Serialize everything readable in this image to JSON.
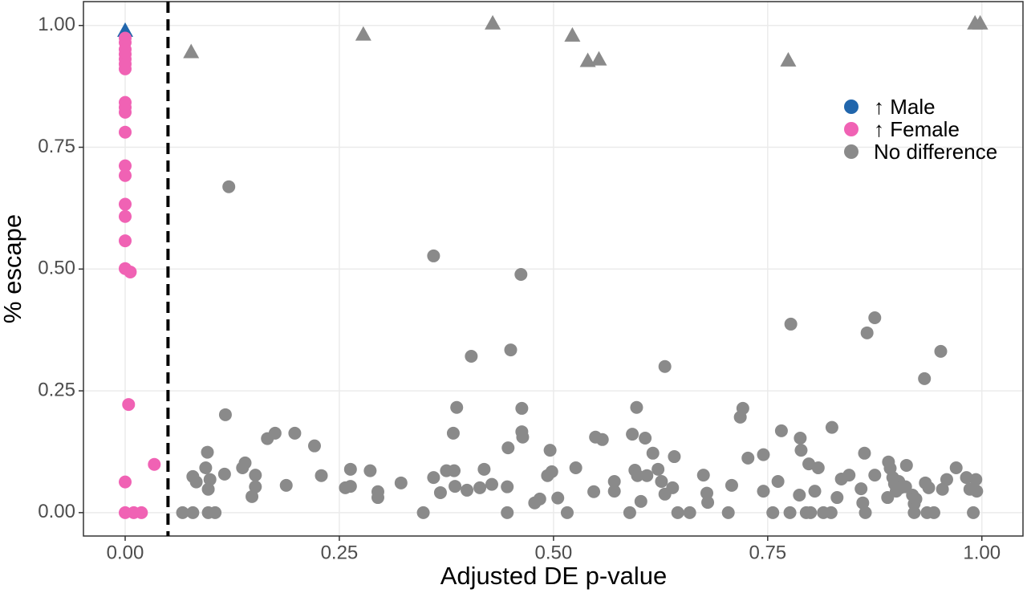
{
  "chart_data": {
    "type": "scatter",
    "xlabel": "Adjusted DE p-value",
    "ylabel": "% escape",
    "xlim": [
      -0.0487,
      1.048
    ],
    "ylim": [
      -0.048,
      1.049
    ],
    "xticks": [
      {
        "value": 0,
        "label": "0.00"
      },
      {
        "value": 0.25,
        "label": "0.25"
      },
      {
        "value": 0.5,
        "label": "0.50"
      },
      {
        "value": 0.75,
        "label": "0.75"
      },
      {
        "value": 1,
        "label": "1.00"
      }
    ],
    "yticks": [
      {
        "value": 0,
        "label": "0.00"
      },
      {
        "value": 0.25,
        "label": "0.25"
      },
      {
        "value": 0.5,
        "label": "0.50"
      },
      {
        "value": 0.75,
        "label": "0.75"
      },
      {
        "value": 1,
        "label": "1.00"
      }
    ],
    "grid": true,
    "legend": "right",
    "vline": 0.05,
    "series": [
      {
        "name": "↑ Male",
        "color": "#2166ac",
        "x": [
          0
        ],
        "values": [
          0.99
        ],
        "markers": [
          "triangle"
        ]
      },
      {
        "name": "↑ Female",
        "color": "#f062b4",
        "x": [
          0,
          0,
          0,
          0,
          0,
          0,
          0,
          0,
          0,
          0,
          0,
          0,
          0,
          0,
          0,
          0,
          0,
          0.006,
          0.004,
          0.034,
          0,
          0,
          0.01,
          0.019
        ],
        "values": [
          0.974,
          0.965,
          0.951,
          0.941,
          0.931,
          0.921,
          0.911,
          0.842,
          0.832,
          0.822,
          0.781,
          0.712,
          0.692,
          0.633,
          0.608,
          0.558,
          0.501,
          0.494,
          0.222,
          0.099,
          0.063,
          0,
          0,
          0
        ],
        "markers": [
          "circle",
          "circle",
          "circle",
          "circle",
          "circle",
          "circle",
          "circle",
          "circle",
          "circle",
          "circle",
          "circle",
          "circle",
          "circle",
          "circle",
          "circle",
          "circle",
          "circle",
          "circle",
          "circle",
          "circle",
          "circle",
          "circle",
          "circle",
          "circle"
        ]
      },
      {
        "name": "No difference",
        "color": "#8a8a8a",
        "x": [
          0.077,
          0.278,
          0.429,
          0.522,
          0.54,
          0.553,
          0.774,
          0.992,
          0.998,
          0.121,
          0.36,
          0.462,
          0.404,
          0.45,
          0.63,
          0.777,
          0.875,
          0.866,
          0.952,
          0.933,
          0.117,
          0.387,
          0.463,
          0.597,
          0.721,
          0.718,
          0.825,
          0.383,
          0.463,
          0.464,
          0.175,
          0.166,
          0.198,
          0.221,
          0.549,
          0.557,
          0.592,
          0.607,
          0.766,
          0.788,
          0.789,
          0.727,
          0.745,
          0.863,
          0.616,
          0.641,
          0.496,
          0.447,
          0.096,
          0.137,
          0.14,
          0.094,
          0.079,
          0.083,
          0.099,
          0.097,
          0.116,
          0.152,
          0.152,
          0.148,
          0.188,
          0.229,
          0.263,
          0.257,
          0.263,
          0.286,
          0.295,
          0.295,
          0.322,
          0.348,
          0.36,
          0.368,
          0.375,
          0.384,
          0.385,
          0.399,
          0.414,
          0.419,
          0.428,
          0.446,
          0.446,
          0.478,
          0.484,
          0.493,
          0.498,
          0.505,
          0.516,
          0.526,
          0.547,
          0.571,
          0.571,
          0.589,
          0.595,
          0.598,
          0.602,
          0.609,
          0.622,
          0.626,
          0.63,
          0.639,
          0.645,
          0.659,
          0.675,
          0.679,
          0.68,
          0.704,
          0.708,
          0.745,
          0.756,
          0.762,
          0.776,
          0.787,
          0.795,
          0.798,
          0.8,
          0.805,
          0.809,
          0.815,
          0.824,
          0.831,
          0.836,
          0.845,
          0.859,
          0.861,
          0.864,
          0.875,
          0.891,
          0.893,
          0.896,
          0.898,
          0.9,
          0.89,
          0.903,
          0.905,
          0.912,
          0.911,
          0.919,
          0.921,
          0.921,
          0.923,
          0.934,
          0.936,
          0.938,
          0.944,
          0.954,
          0.959,
          0.97,
          0.982,
          0.986,
          0.99,
          0.993,
          0.994,
          0.067,
          0.079,
          0.097,
          0.105
        ],
        "values": [
          0.946,
          0.982,
          1.005,
          0.98,
          0.928,
          0.931,
          0.929,
          1.005,
          1.005,
          0.669,
          0.527,
          0.489,
          0.321,
          0.334,
          0.3,
          0.387,
          0.4,
          0.369,
          0.331,
          0.275,
          0.201,
          0.216,
          0.214,
          0.216,
          0.214,
          0.196,
          0.175,
          0.163,
          0.166,
          0.155,
          0.163,
          0.152,
          0.163,
          0.137,
          0.155,
          0.15,
          0.161,
          0.153,
          0.168,
          0.153,
          0.128,
          0.112,
          0.119,
          0.122,
          0.122,
          0.115,
          0.128,
          0.133,
          0.124,
          0.092,
          0.102,
          0.092,
          0.074,
          0.063,
          0.068,
          0.048,
          0.079,
          0.077,
          0.053,
          0.033,
          0.056,
          0.076,
          0.089,
          0.051,
          0.054,
          0.086,
          0.043,
          0.031,
          0.061,
          0,
          0.072,
          0.041,
          0.086,
          0.086,
          0.054,
          0.046,
          0.051,
          0.089,
          0.058,
          0.053,
          0,
          0.02,
          0.028,
          0.076,
          0.084,
          0.03,
          0,
          0.092,
          0.043,
          0.064,
          0.044,
          0,
          0.087,
          0.076,
          0.023,
          0.076,
          0.089,
          0.064,
          0.038,
          0.051,
          0,
          0,
          0.077,
          0.04,
          0.021,
          0,
          0.056,
          0.044,
          0,
          0.064,
          0,
          0.036,
          0,
          0.1,
          0,
          0.044,
          0.092,
          0,
          0,
          0.031,
          0.069,
          0.077,
          0.049,
          0.02,
          0,
          0.077,
          0.104,
          0.091,
          0.072,
          0.059,
          0.044,
          0.031,
          0.064,
          0.051,
          0.097,
          0.053,
          0.036,
          0.018,
          0,
          0.028,
          0.061,
          0,
          0.051,
          0,
          0.048,
          0.068,
          0.092,
          0.072,
          0.048,
          0,
          0.068,
          0.044,
          0,
          0,
          0,
          0
        ],
        "markers": [
          "triangle",
          "triangle",
          "triangle",
          "triangle",
          "triangle",
          "triangle",
          "triangle",
          "triangle",
          "triangle",
          "circle",
          "circle",
          "circle",
          "circle",
          "circle",
          "circle",
          "circle",
          "circle",
          "circle",
          "circle",
          "circle",
          "circle",
          "circle",
          "circle",
          "circle",
          "circle",
          "circle",
          "circle",
          "circle",
          "circle",
          "circle",
          "circle",
          "circle",
          "circle",
          "circle",
          "circle",
          "circle",
          "circle",
          "circle",
          "circle",
          "circle",
          "circle",
          "circle",
          "circle",
          "circle",
          "circle",
          "circle",
          "circle",
          "circle",
          "circle",
          "circle",
          "circle",
          "circle",
          "circle",
          "circle",
          "circle",
          "circle",
          "circle",
          "circle",
          "circle",
          "circle",
          "circle",
          "circle",
          "circle",
          "circle",
          "circle",
          "circle",
          "circle",
          "circle",
          "circle",
          "circle",
          "circle",
          "circle",
          "circle",
          "circle",
          "circle",
          "circle",
          "circle",
          "circle",
          "circle",
          "circle",
          "circle",
          "circle",
          "circle",
          "circle",
          "circle",
          "circle",
          "circle",
          "circle",
          "circle",
          "circle",
          "circle",
          "circle",
          "circle",
          "circle",
          "circle",
          "circle",
          "circle",
          "circle",
          "circle",
          "circle",
          "circle",
          "circle",
          "circle",
          "circle",
          "circle",
          "circle",
          "circle",
          "circle",
          "circle",
          "circle",
          "circle",
          "circle",
          "circle",
          "circle",
          "circle",
          "circle",
          "circle",
          "circle",
          "circle",
          "circle",
          "circle",
          "circle",
          "circle",
          "circle",
          "circle",
          "circle",
          "circle",
          "circle",
          "circle",
          "circle",
          "circle",
          "circle",
          "circle",
          "circle",
          "circle",
          "circle",
          "circle",
          "circle",
          "circle",
          "circle",
          "circle",
          "circle",
          "circle",
          "circle",
          "circle",
          "circle",
          "circle",
          "circle",
          "circle",
          "circle",
          "circle",
          "circle",
          "circle",
          "circle",
          "circle",
          "circle"
        ]
      }
    ]
  }
}
